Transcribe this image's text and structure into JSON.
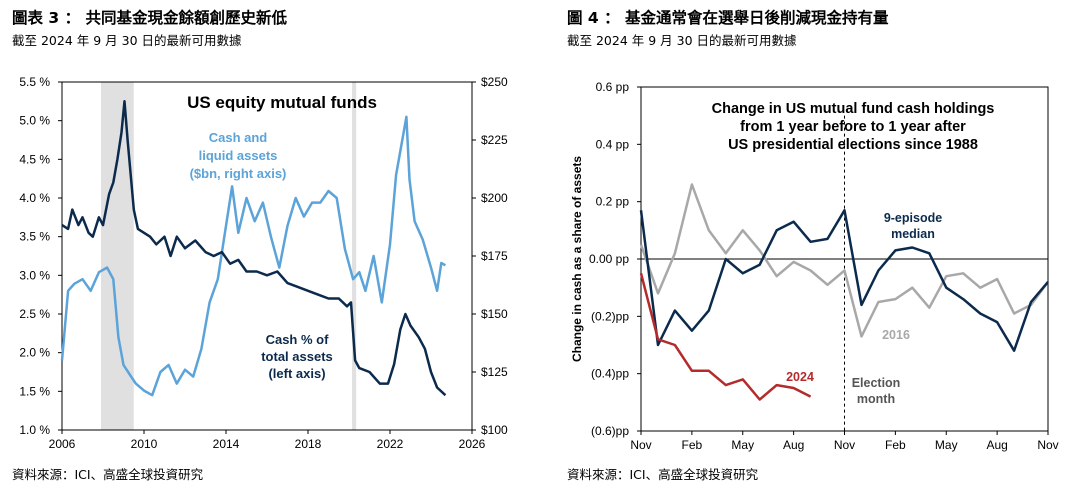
{
  "left": {
    "title": "圖表 3 ： 共同基金現金餘額創歷史新低",
    "subtitle": "截至 2024 年 9 月 30 日的最新可用數據",
    "source": "資料來源：ICI、高盛全球投資研究",
    "colors": {
      "cash_pct": "#0b2a4c",
      "cash_bn": "#5ba3d9",
      "recession": "#e0e0e0"
    }
  },
  "right": {
    "title": "圖 4 ： 基金通常會在選舉日後削減現金持有量",
    "subtitle": "截至 2024 年 9 月 30 日的最新可用數據",
    "source": "資料來源：ICI、高盛全球投資研究",
    "colors": {
      "median": "#0b2a4c",
      "y2016": "#a8a8a8",
      "y2024": "#b52b2b"
    }
  },
  "chart_data": [
    {
      "type": "line",
      "title": "US equity mutual funds",
      "xlabel": "",
      "ylabel": "",
      "x_ticks": [
        "2006",
        "2010",
        "2014",
        "2018",
        "2022",
        "2026"
      ],
      "x_range": [
        2006,
        2026
      ],
      "y_left_ticks": [
        "1.0 %",
        "1.5 %",
        "2.0 %",
        "2.5 %",
        "3.0 %",
        "3.5 %",
        "4.0 %",
        "4.5 %",
        "5.0 %",
        "5.5 %"
      ],
      "y_left_range": [
        1.0,
        5.5
      ],
      "y_right_ticks": [
        "$100",
        "$125",
        "$150",
        "$175",
        "$200",
        "$225",
        "$250"
      ],
      "y_right_range": [
        100,
        250
      ],
      "shaded_periods": [
        [
          2007.9,
          2009.5
        ],
        [
          2020.15,
          2020.35
        ]
      ],
      "grid": false,
      "series": [
        {
          "name": "Cash % of total assets (left axis)",
          "label_lines": [
            "Cash % of",
            "total assets",
            "(left axis)"
          ],
          "axis": "left",
          "points": [
            [
              2006.0,
              3.65
            ],
            [
              2006.3,
              3.6
            ],
            [
              2006.5,
              3.85
            ],
            [
              2006.8,
              3.65
            ],
            [
              2007.0,
              3.75
            ],
            [
              2007.3,
              3.55
            ],
            [
              2007.5,
              3.5
            ],
            [
              2007.8,
              3.75
            ],
            [
              2008.0,
              3.65
            ],
            [
              2008.3,
              4.05
            ],
            [
              2008.5,
              4.2
            ],
            [
              2008.7,
              4.5
            ],
            [
              2008.9,
              4.85
            ],
            [
              2009.05,
              5.25
            ],
            [
              2009.2,
              4.75
            ],
            [
              2009.35,
              4.3
            ],
            [
              2009.5,
              3.85
            ],
            [
              2009.7,
              3.6
            ],
            [
              2010.0,
              3.55
            ],
            [
              2010.3,
              3.5
            ],
            [
              2010.6,
              3.4
            ],
            [
              2011.0,
              3.5
            ],
            [
              2011.3,
              3.25
            ],
            [
              2011.6,
              3.5
            ],
            [
              2012.0,
              3.35
            ],
            [
              2012.5,
              3.45
            ],
            [
              2013.0,
              3.3
            ],
            [
              2013.4,
              3.25
            ],
            [
              2013.8,
              3.3
            ],
            [
              2014.2,
              3.15
            ],
            [
              2014.6,
              3.2
            ],
            [
              2015.0,
              3.05
            ],
            [
              2015.5,
              3.05
            ],
            [
              2016.0,
              3.0
            ],
            [
              2016.5,
              3.05
            ],
            [
              2017.0,
              2.9
            ],
            [
              2017.5,
              2.85
            ],
            [
              2018.0,
              2.8
            ],
            [
              2018.5,
              2.75
            ],
            [
              2019.0,
              2.7
            ],
            [
              2019.5,
              2.7
            ],
            [
              2019.9,
              2.6
            ],
            [
              2020.1,
              2.65
            ],
            [
              2020.3,
              1.9
            ],
            [
              2020.5,
              1.8
            ],
            [
              2021.0,
              1.75
            ],
            [
              2021.5,
              1.6
            ],
            [
              2021.9,
              1.6
            ],
            [
              2022.2,
              1.85
            ],
            [
              2022.5,
              2.3
            ],
            [
              2022.75,
              2.5
            ],
            [
              2023.0,
              2.35
            ],
            [
              2023.4,
              2.2
            ],
            [
              2023.7,
              2.05
            ],
            [
              2024.0,
              1.75
            ],
            [
              2024.3,
              1.55
            ],
            [
              2024.7,
              1.45
            ]
          ]
        },
        {
          "name": "Cash and liquid assets ($bn, right axis)",
          "label_lines": [
            "Cash and",
            "liquid assets",
            "($bn, right axis)"
          ],
          "axis": "right",
          "points": [
            [
              2006.0,
              130
            ],
            [
              2006.3,
              160
            ],
            [
              2006.6,
              163
            ],
            [
              2007.0,
              165
            ],
            [
              2007.4,
              160
            ],
            [
              2007.8,
              168
            ],
            [
              2008.2,
              170
            ],
            [
              2008.5,
              165
            ],
            [
              2008.75,
              140
            ],
            [
              2009.0,
              128
            ],
            [
              2009.3,
              124
            ],
            [
              2009.6,
              120
            ],
            [
              2010.0,
              117
            ],
            [
              2010.4,
              115
            ],
            [
              2010.8,
              125
            ],
            [
              2011.2,
              128
            ],
            [
              2011.6,
              120
            ],
            [
              2012.0,
              126
            ],
            [
              2012.4,
              123
            ],
            [
              2012.8,
              135
            ],
            [
              2013.2,
              155
            ],
            [
              2013.6,
              165
            ],
            [
              2014.0,
              188
            ],
            [
              2014.3,
              205
            ],
            [
              2014.6,
              185
            ],
            [
              2015.0,
              200
            ],
            [
              2015.4,
              190
            ],
            [
              2015.8,
              198
            ],
            [
              2016.2,
              183
            ],
            [
              2016.6,
              170
            ],
            [
              2017.0,
              188
            ],
            [
              2017.4,
              200
            ],
            [
              2017.8,
              192
            ],
            [
              2018.2,
              198
            ],
            [
              2018.6,
              198
            ],
            [
              2019.0,
              203
            ],
            [
              2019.4,
              200
            ],
            [
              2019.8,
              178
            ],
            [
              2020.2,
              165
            ],
            [
              2020.5,
              168
            ],
            [
              2020.8,
              160
            ],
            [
              2021.2,
              175
            ],
            [
              2021.6,
              155
            ],
            [
              2022.0,
              180
            ],
            [
              2022.3,
              210
            ],
            [
              2022.6,
              225
            ],
            [
              2022.8,
              235
            ],
            [
              2022.95,
              208
            ],
            [
              2023.2,
              190
            ],
            [
              2023.6,
              182
            ],
            [
              2024.0,
              170
            ],
            [
              2024.3,
              160
            ],
            [
              2024.5,
              172
            ],
            [
              2024.7,
              171
            ]
          ]
        }
      ]
    },
    {
      "type": "line",
      "title": "Change in US mutual fund cash holdings from 1 year before to 1 year after US presidential elections since 1988",
      "title_lines": [
        "Change in US mutual fund cash holdings",
        "from 1 year before to 1 year after",
        "US presidential elections since 1988"
      ],
      "xlabel": "",
      "ylabel": "Change in cash as a share of assets",
      "x_ticks": [
        "Nov",
        "Feb",
        "May",
        "Aug",
        "Nov",
        "Feb",
        "May",
        "Aug",
        "Nov"
      ],
      "x_range": [
        0,
        24
      ],
      "y_ticks": [
        "0.6 pp",
        "0.4 pp",
        "0.2 pp",
        "0.00 pp",
        "(0.2)pp",
        "(0.4)pp",
        "(0.6)pp"
      ],
      "y_range": [
        -0.6,
        0.6
      ],
      "vline": {
        "x": 12,
        "label_lines": [
          "Election",
          "month"
        ]
      },
      "grid": false,
      "series": [
        {
          "name": "9-episode median",
          "label_lines": [
            "9-episode",
            "median"
          ],
          "x": [
            0,
            1,
            2,
            3,
            4,
            5,
            6,
            7,
            8,
            9,
            10,
            11,
            12,
            13,
            14,
            15,
            16,
            17,
            18,
            19,
            20,
            21,
            22,
            23,
            24
          ],
          "values": [
            0.17,
            -0.3,
            -0.18,
            -0.25,
            -0.18,
            0.0,
            -0.05,
            -0.02,
            0.1,
            0.13,
            0.06,
            0.07,
            0.17,
            -0.16,
            -0.04,
            0.03,
            0.04,
            0.02,
            -0.1,
            -0.14,
            -0.19,
            -0.22,
            -0.32,
            -0.15,
            -0.08
          ]
        },
        {
          "name": "2016",
          "label_lines": [
            "2016"
          ],
          "x": [
            0,
            1,
            2,
            3,
            4,
            5,
            6,
            7,
            8,
            9,
            10,
            11,
            12,
            13,
            14,
            15,
            16,
            17,
            18,
            19,
            20,
            21,
            22,
            23,
            24
          ],
          "values": [
            0.05,
            -0.12,
            0.02,
            0.26,
            0.1,
            0.02,
            0.1,
            0.03,
            -0.06,
            -0.01,
            -0.04,
            -0.09,
            -0.04,
            -0.27,
            -0.15,
            -0.14,
            -0.1,
            -0.17,
            -0.06,
            -0.05,
            -0.1,
            -0.07,
            -0.19,
            -0.16,
            -0.08
          ]
        },
        {
          "name": "2024",
          "label_lines": [
            "2024"
          ],
          "x": [
            0,
            1,
            2,
            3,
            4,
            5,
            6,
            7,
            8,
            9,
            10
          ],
          "values": [
            -0.05,
            -0.28,
            -0.3,
            -0.39,
            -0.39,
            -0.44,
            -0.42,
            -0.49,
            -0.44,
            -0.45,
            -0.48
          ]
        }
      ]
    }
  ]
}
